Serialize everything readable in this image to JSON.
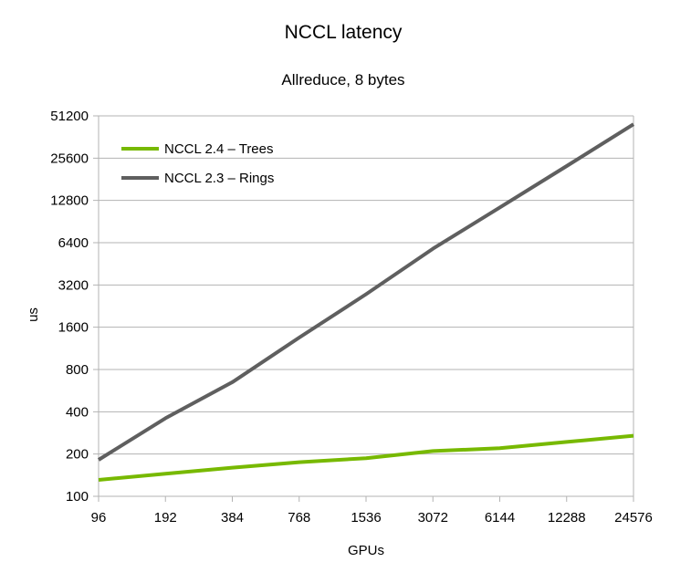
{
  "chart_data": {
    "type": "line",
    "title": "NCCL latency",
    "subtitle": "Allreduce, 8 bytes",
    "xlabel": "GPUs",
    "ylabel": "us",
    "y_scale": "log2",
    "ylim": [
      100,
      51200
    ],
    "y_ticks": [
      "100",
      "200",
      "400",
      "800",
      "1600",
      "3200",
      "6400",
      "12800",
      "25600",
      "51200"
    ],
    "y_tick_values": [
      100,
      200,
      400,
      800,
      1600,
      3200,
      6400,
      12800,
      25600,
      51200
    ],
    "categories": [
      "96",
      "192",
      "384",
      "768",
      "1536",
      "3072",
      "6144",
      "12288",
      "24576"
    ],
    "grid": true,
    "legend_position": "top-left",
    "series": [
      {
        "name": "NCCL 2.4 – Trees",
        "color": "#77b900",
        "values": [
          131,
          145,
          160,
          175,
          187,
          210,
          220,
          244,
          270
        ]
      },
      {
        "name": "NCCL 2.3 – Rings",
        "color": "#5f5f5f",
        "values": [
          182,
          360,
          650,
          1350,
          2750,
          5800,
          11400,
          22500,
          44600
        ]
      }
    ]
  }
}
